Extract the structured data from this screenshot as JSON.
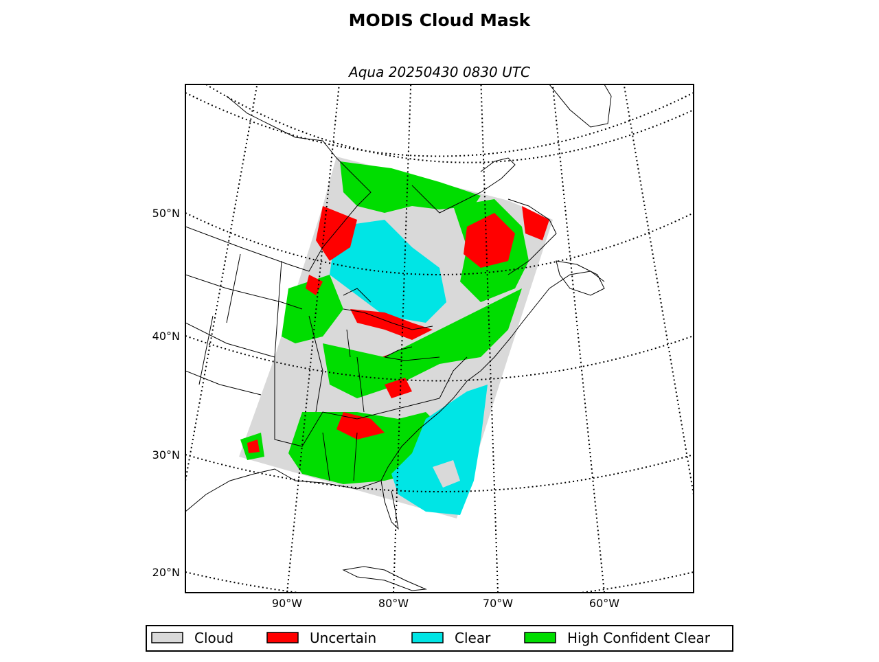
{
  "title": "MODIS Cloud Mask",
  "subtitle": "Aqua 20250430 0830 UTC",
  "map": {
    "lat_labels": [
      "50°N",
      "40°N",
      "30°N",
      "20°N"
    ],
    "lon_labels": [
      "90°W",
      "80°W",
      "70°W",
      "60°W"
    ]
  },
  "legend": {
    "items": [
      {
        "label": "Cloud",
        "color": "#d9d9d9"
      },
      {
        "label": "Uncertain",
        "color": "#ff0000"
      },
      {
        "label": "Clear",
        "color": "#00e5e5"
      },
      {
        "label": "High Confident Clear",
        "color": "#00dd00"
      }
    ]
  }
}
